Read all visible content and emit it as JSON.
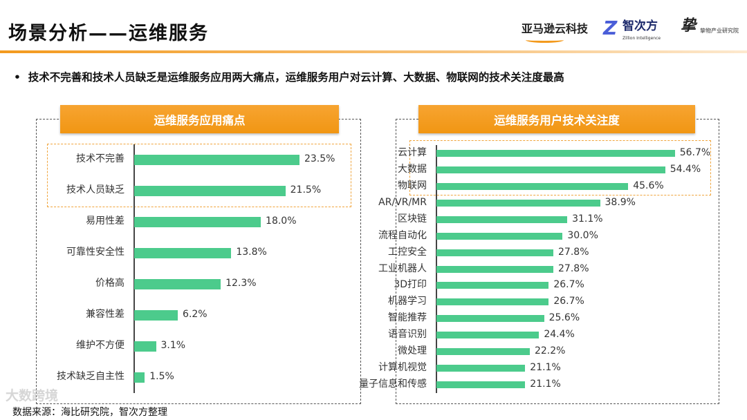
{
  "title": "场景分析——运维服务",
  "logos": {
    "amazon": "亚马逊云科技",
    "zhicifang": "智次方",
    "zhicifang_en": "Zillion Intelligence",
    "wuwu": "挚物产业研究院"
  },
  "bullet": "技术不完善和技术人员缺乏是运维服务应用两大痛点，运维服务用户对云计算、大数据、物联网的技术关注度最高",
  "accent_color": "#f39a1e",
  "bar_color": "#4ccb8c",
  "watermark": "大数跨境",
  "source": "数据来源：海比研究院，智次方整理",
  "chart_data": [
    {
      "type": "bar",
      "orientation": "horizontal",
      "title": "运维服务应用痛点",
      "unit": "%",
      "highlighted": [
        "技术不完善",
        "技术人员缺乏"
      ],
      "categories": [
        "技术不完善",
        "技术人员缺乏",
        "易用性差",
        "可靠性安全性",
        "价格高",
        "兼容性差",
        "维护不方便",
        "技术缺乏自主性"
      ],
      "values": [
        23.5,
        21.5,
        18.0,
        13.8,
        12.3,
        6.2,
        3.1,
        1.5
      ]
    },
    {
      "type": "bar",
      "orientation": "horizontal",
      "title": "运维服务用户技术关注度",
      "unit": "%",
      "highlighted": [
        "云计算",
        "大数据",
        "物联网"
      ],
      "categories": [
        "云计算",
        "大数据",
        "物联网",
        "AR/VR/MR",
        "区块链",
        "流程自动化",
        "工控安全",
        "工业机器人",
        "3D打印",
        "机器学习",
        "智能推荐",
        "语音识别",
        "微处理",
        "计算机视觉",
        "量子信息和传感"
      ],
      "values": [
        56.7,
        54.4,
        45.6,
        38.9,
        31.1,
        30.0,
        27.8,
        27.8,
        26.7,
        26.7,
        25.6,
        24.4,
        22.2,
        21.1,
        21.1
      ]
    }
  ]
}
